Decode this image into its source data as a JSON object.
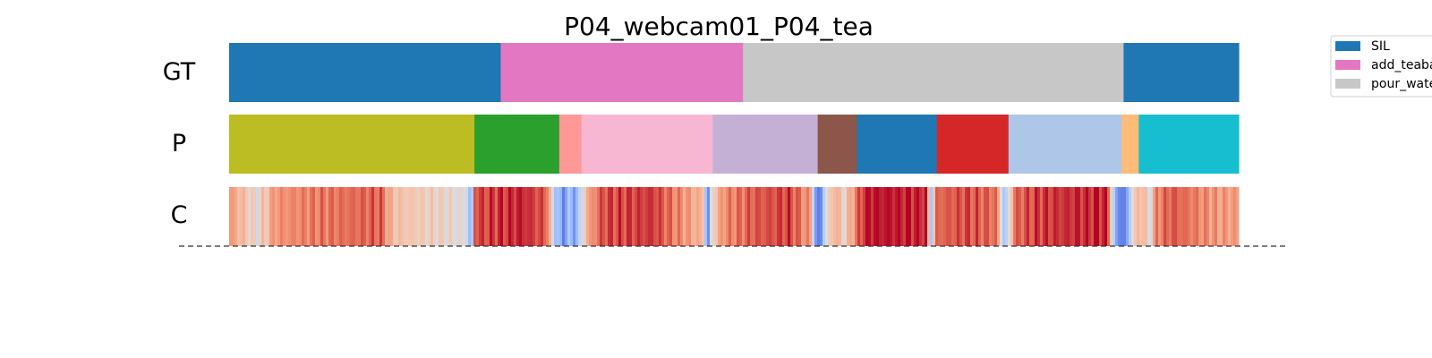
{
  "chart_data": {
    "type": "segmentation_timeline",
    "title": "P04_webcam01_P04_tea",
    "rows": [
      {
        "label": "GT",
        "segments": [
          {
            "label": "SIL",
            "color": "#1f77b4",
            "start": 0,
            "end": 0.269
          },
          {
            "label": "add_teabag",
            "color": "#e377c2",
            "start": 0.269,
            "end": 0.509
          },
          {
            "label": "pour_water",
            "color": "#c7c7c7",
            "start": 0.509,
            "end": 0.886
          },
          {
            "label": "SIL",
            "color": "#1f77b4",
            "start": 0.886,
            "end": 1.0
          }
        ]
      },
      {
        "label": "P",
        "segments": [
          {
            "color": "#bcbd22",
            "start": 0,
            "end": 0.243
          },
          {
            "color": "#2ca02c",
            "start": 0.243,
            "end": 0.327
          },
          {
            "color": "#ff9896",
            "start": 0.327,
            "end": 0.349
          },
          {
            "color": "#f7b6d2",
            "start": 0.349,
            "end": 0.479
          },
          {
            "color": "#c5b0d5",
            "start": 0.479,
            "end": 0.583
          },
          {
            "color": "#8c564b",
            "start": 0.583,
            "end": 0.622
          },
          {
            "color": "#1f77b4",
            "start": 0.622,
            "end": 0.701
          },
          {
            "color": "#d62728",
            "start": 0.701,
            "end": 0.772
          },
          {
            "color": "#aec7e8",
            "start": 0.772,
            "end": 0.884
          },
          {
            "color": "#ffbb78",
            "start": 0.884,
            "end": 0.901
          },
          {
            "color": "#17becf",
            "start": 0.901,
            "end": 1.0
          }
        ]
      },
      {
        "label": "C",
        "colormap": "coolwarm",
        "confidence": [
          [
            0,
            0.76
          ],
          [
            0.028,
            0.52
          ],
          [
            0.046,
            0.76
          ],
          [
            0.09,
            0.82
          ],
          [
            0.15,
            0.87
          ],
          [
            0.162,
            0.64
          ],
          [
            0.21,
            0.56
          ],
          [
            0.235,
            0.5
          ],
          [
            0.24,
            0.15
          ],
          [
            0.243,
            0.9
          ],
          [
            0.29,
            0.96
          ],
          [
            0.315,
            0.87
          ],
          [
            0.32,
            0.45
          ],
          [
            0.327,
            0.3
          ],
          [
            0.33,
            0.1
          ],
          [
            0.335,
            0.32
          ],
          [
            0.342,
            0.22
          ],
          [
            0.348,
            0.4
          ],
          [
            0.355,
            0.7
          ],
          [
            0.37,
            0.9
          ],
          [
            0.42,
            0.93
          ],
          [
            0.47,
            0.65
          ],
          [
            0.474,
            0.05
          ],
          [
            0.478,
            0.55
          ],
          [
            0.49,
            0.78
          ],
          [
            0.52,
            0.88
          ],
          [
            0.555,
            0.92
          ],
          [
            0.577,
            0.72
          ],
          [
            0.58,
            0.2
          ],
          [
            0.585,
            0.05
          ],
          [
            0.59,
            0.45
          ],
          [
            0.6,
            0.7
          ],
          [
            0.61,
            0.55
          ],
          [
            0.618,
            0.75
          ],
          [
            0.63,
            0.98
          ],
          [
            0.69,
            0.97
          ],
          [
            0.695,
            0.35
          ],
          [
            0.701,
            0.86
          ],
          [
            0.73,
            0.9
          ],
          [
            0.76,
            0.84
          ],
          [
            0.768,
            0.3
          ],
          [
            0.773,
            0.5
          ],
          [
            0.778,
            0.85
          ],
          [
            0.8,
            0.92
          ],
          [
            0.87,
            0.97
          ],
          [
            0.878,
            0.2
          ],
          [
            0.888,
            0.1
          ],
          [
            0.895,
            0.55
          ],
          [
            0.905,
            0.7
          ],
          [
            0.912,
            0.45
          ],
          [
            0.918,
            0.8
          ],
          [
            0.935,
            0.88
          ],
          [
            0.96,
            0.8
          ],
          [
            0.98,
            0.74
          ],
          [
            1.0,
            0.74
          ]
        ]
      }
    ],
    "legend": {
      "placement": "right",
      "entries": [
        {
          "label": "SIL",
          "color": "#1f77b4"
        },
        {
          "label": "add_teabag",
          "color": "#e377c2"
        },
        {
          "label": "pour_water",
          "color": "#c7c7c7"
        }
      ]
    }
  }
}
